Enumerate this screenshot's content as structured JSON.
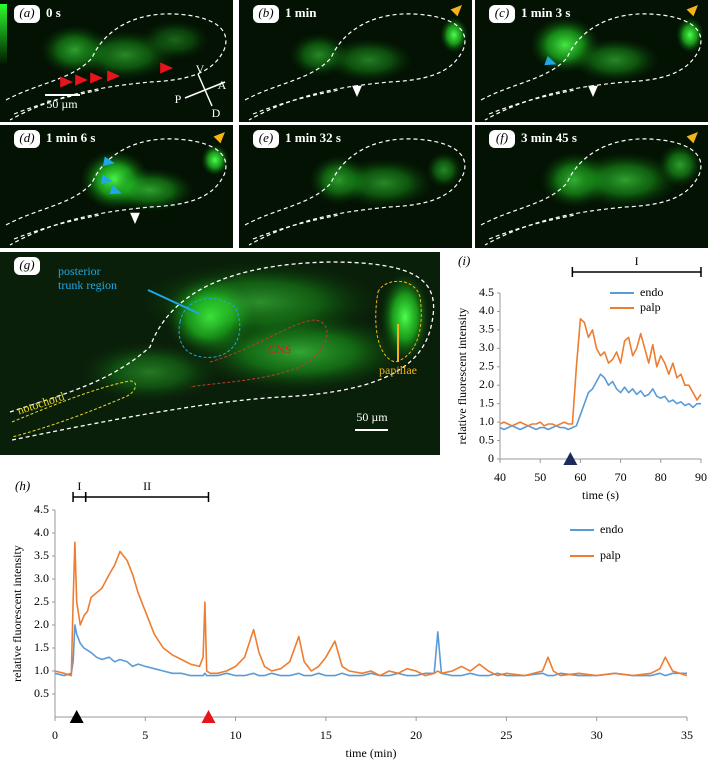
{
  "panels": [
    {
      "label": "(a)",
      "time": "0 s"
    },
    {
      "label": "(b)",
      "time": "1 min"
    },
    {
      "label": "(c)",
      "time": "1 min 3 s"
    },
    {
      "label": "(d)",
      "time": "1 min 6 s"
    },
    {
      "label": "(e)",
      "time": "1 min 32 s"
    },
    {
      "label": "(f)",
      "time": "3 min 45 s"
    }
  ],
  "panel_a_annotations": {
    "scale": "50 µm",
    "directions": [
      "V",
      "A",
      "P",
      "D"
    ]
  },
  "panel_g": {
    "label": "(g)",
    "posterior_trunk_region": [
      "posterior",
      "trunk region"
    ],
    "cns": "CNS",
    "notochord": "notochord",
    "papillae": "papillae",
    "scale": "50 µm"
  },
  "chart_data": [
    {
      "type": "line",
      "panel_label": "(h)",
      "xlabel": "time (min)",
      "ylabel": "relative fluorescent intensity",
      "xlim": [
        0,
        35
      ],
      "ylim": [
        0,
        4.5
      ],
      "xticks": [
        0,
        5,
        10,
        15,
        20,
        25,
        30,
        35
      ],
      "yticks": [
        0.5,
        {
          "value": 1,
          "label": "1.0"
        },
        1.5,
        {
          "value": 2,
          "label": "2.0"
        },
        2.5,
        {
          "value": 3,
          "label": "3.0"
        },
        3.5,
        {
          "value": 4,
          "label": "4.0"
        },
        4.5
      ],
      "legend": "upper right",
      "periods": [
        {
          "label": "I",
          "start": 1,
          "end": 1.7
        },
        {
          "label": "II",
          "start": 1.7,
          "end": 8.5
        }
      ],
      "markers": [
        {
          "x": 1.2,
          "color": "#000000"
        },
        {
          "x": 8.5,
          "color": "#e8141c"
        }
      ],
      "x": [
        0,
        0.5,
        0.9,
        1.0,
        1.1,
        1.2,
        1.4,
        1.6,
        1.8,
        2,
        2.3,
        2.6,
        3,
        3.3,
        3.6,
        4,
        4.3,
        4.6,
        5,
        5.5,
        6,
        6.5,
        7,
        7.5,
        8,
        8.2,
        8.3,
        8.4,
        8.6,
        9,
        9.5,
        10,
        10.5,
        11,
        11.3,
        11.6,
        12,
        12.5,
        13,
        13.5,
        13.8,
        14.2,
        14.6,
        15,
        15.5,
        15.9,
        16.3,
        17,
        17.5,
        18,
        18.5,
        19,
        19.5,
        20,
        20.5,
        21,
        21.2,
        21.4,
        22,
        22.5,
        23,
        23.5,
        24,
        24.5,
        25,
        26,
        27,
        27.3,
        27.6,
        28,
        29,
        30,
        31,
        32,
        33,
        33.5,
        33.8,
        34.2,
        35
      ],
      "series": [
        {
          "name": "endo",
          "color": "#5b9bd5",
          "values": [
            0.95,
            0.9,
            0.95,
            1.2,
            2.0,
            1.8,
            1.6,
            1.5,
            1.45,
            1.4,
            1.3,
            1.25,
            1.3,
            1.2,
            1.25,
            1.2,
            1.1,
            1.15,
            1.1,
            1.05,
            1.0,
            0.95,
            0.95,
            0.9,
            0.9,
            0.9,
            0.95,
            0.9,
            0.9,
            0.9,
            0.95,
            0.9,
            0.9,
            0.95,
            0.9,
            0.9,
            0.95,
            0.9,
            0.9,
            0.95,
            0.9,
            0.9,
            0.95,
            0.9,
            0.9,
            0.95,
            0.9,
            0.9,
            0.95,
            0.9,
            0.9,
            0.95,
            0.9,
            0.9,
            0.95,
            0.95,
            1.85,
            0.95,
            0.9,
            0.9,
            0.95,
            0.9,
            0.9,
            0.95,
            0.9,
            0.9,
            0.95,
            0.9,
            0.9,
            0.95,
            0.9,
            0.9,
            0.95,
            0.9,
            0.9,
            0.95,
            0.9,
            0.95,
            0.95
          ]
        },
        {
          "name": "palp",
          "color": "#ed7d31",
          "values": [
            1.0,
            0.95,
            0.9,
            2.5,
            3.8,
            2.5,
            2.0,
            2.2,
            2.3,
            2.6,
            2.7,
            2.8,
            3.1,
            3.3,
            3.6,
            3.4,
            3.1,
            2.7,
            2.3,
            1.8,
            1.5,
            1.35,
            1.25,
            1.15,
            1.1,
            1.3,
            2.5,
            1.0,
            0.95,
            0.95,
            1.0,
            1.1,
            1.3,
            1.9,
            1.4,
            1.1,
            1.0,
            1.05,
            1.2,
            1.75,
            1.2,
            1.0,
            1.1,
            1.3,
            1.65,
            1.1,
            1.0,
            0.95,
            1.0,
            0.9,
            1.0,
            0.95,
            1.05,
            1.0,
            0.9,
            0.95,
            1.0,
            0.95,
            1.0,
            1.1,
            1.0,
            1.15,
            1.0,
            0.9,
            0.95,
            0.9,
            1.0,
            1.3,
            1.0,
            0.9,
            0.95,
            0.9,
            0.95,
            0.9,
            0.95,
            1.05,
            1.3,
            1.0,
            0.9
          ]
        }
      ]
    },
    {
      "type": "line",
      "panel_label": "(i)",
      "xlabel": "time (s)",
      "ylabel": "relative fluorescent intensity",
      "xlim": [
        40,
        90
      ],
      "ylim": [
        0,
        4.5
      ],
      "xticks": [
        40,
        50,
        60,
        70,
        80,
        90
      ],
      "yticks": [
        0,
        0.5,
        {
          "value": 1,
          "label": "1.0"
        },
        1.5,
        {
          "value": 2,
          "label": "2.0"
        },
        2.5,
        {
          "value": 3,
          "label": "3.0"
        },
        3.5,
        {
          "value": 4,
          "label": "4.0"
        },
        4.5
      ],
      "legend": "upper right",
      "periods": [
        {
          "label": "I",
          "start": 58,
          "end": 90
        }
      ],
      "markers": [
        {
          "x": 57.5,
          "color": "#1c2a5c"
        }
      ],
      "x": [
        40,
        41,
        42,
        43,
        44,
        45,
        46,
        47,
        48,
        49,
        50,
        51,
        52,
        53,
        54,
        55,
        56,
        57,
        58,
        59,
        60,
        61,
        62,
        63,
        64,
        65,
        66,
        67,
        68,
        69,
        70,
        71,
        72,
        73,
        74,
        75,
        76,
        77,
        78,
        79,
        80,
        81,
        82,
        83,
        84,
        85,
        86,
        87,
        88,
        89,
        90
      ],
      "series": [
        {
          "name": "endo",
          "color": "#5b9bd5",
          "values": [
            0.85,
            0.8,
            0.85,
            0.9,
            0.85,
            0.8,
            0.85,
            0.9,
            0.85,
            0.8,
            0.85,
            0.85,
            0.8,
            0.85,
            0.9,
            0.85,
            0.85,
            0.8,
            0.85,
            0.9,
            1.2,
            1.5,
            1.8,
            1.9,
            2.1,
            2.3,
            2.2,
            2.0,
            2.1,
            1.9,
            1.8,
            1.95,
            1.8,
            1.9,
            1.75,
            1.85,
            1.7,
            1.75,
            1.9,
            1.7,
            1.65,
            1.7,
            1.55,
            1.6,
            1.5,
            1.55,
            1.45,
            1.5,
            1.4,
            1.5,
            1.5
          ]
        },
        {
          "name": "palp",
          "color": "#ed7d31",
          "values": [
            0.95,
            1.0,
            0.95,
            0.9,
            0.95,
            1.0,
            0.95,
            0.9,
            0.95,
            0.95,
            1.0,
            0.9,
            0.95,
            0.95,
            0.9,
            0.95,
            1.0,
            0.95,
            0.95,
            2.5,
            3.8,
            3.7,
            3.3,
            3.5,
            3.0,
            2.8,
            2.9,
            2.6,
            2.7,
            2.9,
            2.6,
            3.2,
            3.3,
            2.8,
            3.0,
            3.4,
            3.0,
            2.6,
            3.1,
            2.5,
            2.8,
            2.6,
            2.3,
            2.6,
            2.2,
            2.3,
            2.0,
            2.0,
            1.8,
            1.6,
            1.75
          ]
        }
      ]
    }
  ]
}
